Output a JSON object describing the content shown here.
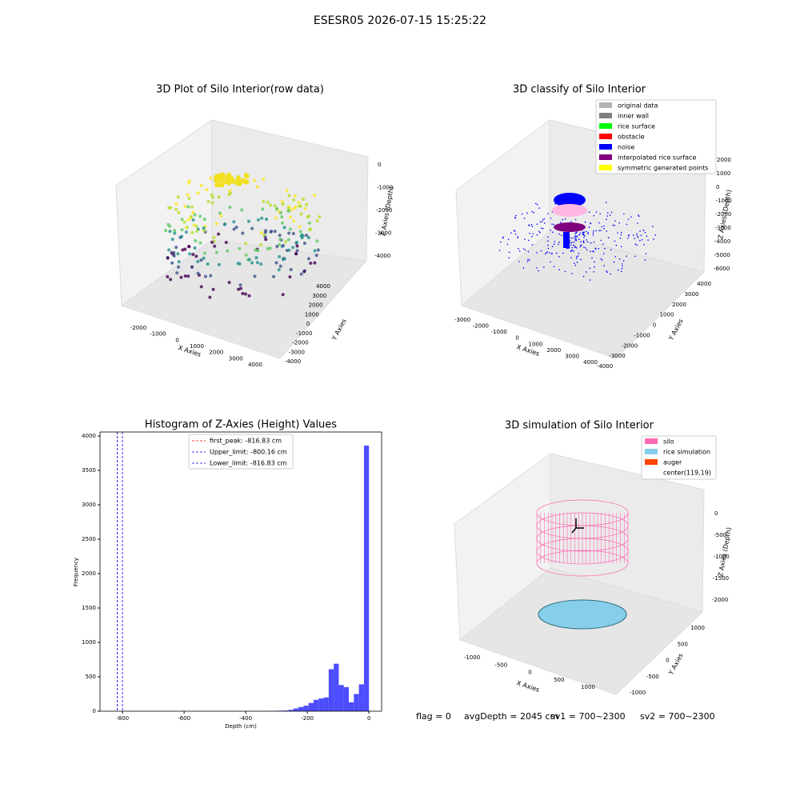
{
  "title": "ESESR05 2026-07-15 15:25:22",
  "footer": [
    "flag = 0",
    "avgDepth = 2045 cm",
    "sv1 = 700~2300",
    "sv2 = 700~2300"
  ],
  "chart_data": [
    {
      "type": "scatter3d",
      "title": "3D Plot of Silo Interior(row data)",
      "xlabel": "X Axies",
      "ylabel": "Y Axies",
      "zlabel": "Z Axies (Depth)",
      "xticks": [
        -2000,
        -1000,
        0,
        1000,
        2000,
        3000,
        4000
      ],
      "yticks": [
        4000,
        3000,
        2000,
        1000,
        0,
        -1000,
        -2000,
        -3000,
        -4000
      ],
      "zticks": [
        0,
        -1000,
        -2000,
        -3000,
        -4000
      ]
    },
    {
      "type": "scatter3d",
      "title": "3D classify of Silo Interior",
      "xlabel": "X Axies",
      "ylabel": "Y Axies",
      "zlabel": "Z Axies (Depth)",
      "xticks": [
        -3000,
        -2000,
        -1000,
        0,
        1000,
        2000,
        3000,
        4000
      ],
      "yticks": [
        4000,
        3000,
        2000,
        1000,
        0,
        -1000,
        -2000,
        -3000,
        -4000
      ],
      "zticks": [
        2000,
        1000,
        0,
        -1000,
        -2000,
        -3000,
        -4000,
        -5000,
        -6000
      ],
      "series": [
        {
          "name": "original data",
          "color": "#b3b3b3"
        },
        {
          "name": "inner wall",
          "color": "#808080"
        },
        {
          "name": "rice surface",
          "color": "#00ff00"
        },
        {
          "name": "obstacle",
          "color": "#ff0000"
        },
        {
          "name": "noise",
          "color": "#0000ff"
        },
        {
          "name": "interpolated rice surface",
          "color": "#800080"
        },
        {
          "name": "symmetric generated points",
          "color": "#ffff00"
        }
      ]
    },
    {
      "type": "histogram",
      "title": "Histogram of Z-Axies (Height) Values",
      "xlabel": "Depth (cm)",
      "ylabel": "Frequency",
      "color": "#4d4dff",
      "bins": [
        -816.83,
        -800.49,
        -784.16,
        -767.82,
        -751.48,
        -735.15,
        -718.81,
        -702.48,
        -686.14,
        -669.8,
        -653.47,
        -637.13,
        -620.79,
        -604.46,
        -588.12,
        -571.79,
        -555.45,
        -539.11,
        -522.78,
        -506.44,
        -490.1,
        -473.77,
        -457.43,
        -441.09,
        -424.76,
        -408.42,
        -392.08,
        -375.75,
        -359.41,
        -343.08,
        -326.74,
        -310.4,
        -294.07,
        -277.73,
        -261.39,
        -245.06,
        -228.72,
        -212.38,
        -196.05,
        -179.71,
        -163.37,
        -147.04,
        -130.7,
        -114.37,
        -98.03,
        -81.69,
        -65.36,
        -49.02,
        -32.68,
        -16.35,
        0
      ],
      "values": [
        0,
        0,
        0,
        0,
        0,
        0,
        0,
        0,
        0,
        0,
        0,
        0,
        0,
        0,
        0,
        0,
        0,
        0,
        0,
        0,
        0,
        0,
        0,
        0,
        0,
        0,
        0,
        0,
        0,
        2,
        3,
        5,
        8,
        10,
        20,
        40,
        60,
        80,
        120,
        165,
        185,
        200,
        610,
        690,
        380,
        350,
        130,
        250,
        390,
        3860
      ],
      "xlim": [
        -873,
        41
      ],
      "ylim": [
        0,
        4058
      ],
      "xticks": [
        -800,
        -600,
        -400,
        -200,
        0
      ],
      "yticks": [
        0,
        500,
        1000,
        1500,
        2000,
        2500,
        3000,
        3500,
        4000
      ],
      "lines": [
        {
          "name": "first_peak: -816.83 cm",
          "value": -816.83,
          "color": "#ff0000"
        },
        {
          "name": "Upper_limit: -800.16 cm",
          "value": -800.16,
          "color": "#0000ff"
        },
        {
          "name": "Lower_limit: -816.83 cm",
          "value": -816.83,
          "color": "#0000ff"
        }
      ]
    },
    {
      "type": "surface3d",
      "title": "3D simulation of Silo Interior",
      "xlabel": "X Axies",
      "ylabel": "Y Axies",
      "zlabel": "Z Axies (Depth)",
      "xticks": [
        -1000,
        -500,
        0,
        500,
        1000
      ],
      "yticks": [
        1000,
        500,
        0,
        -500,
        -1000
      ],
      "zticks": [
        0,
        -500,
        -1000,
        -1500,
        -2000
      ],
      "series": [
        {
          "name": "silo",
          "color": "#ff69b4"
        },
        {
          "name": "rice simulation",
          "color": "#87ceeb"
        },
        {
          "name": "auger",
          "color": "#ff4500"
        },
        {
          "name": "center(119,19)",
          "color": null
        }
      ]
    }
  ]
}
